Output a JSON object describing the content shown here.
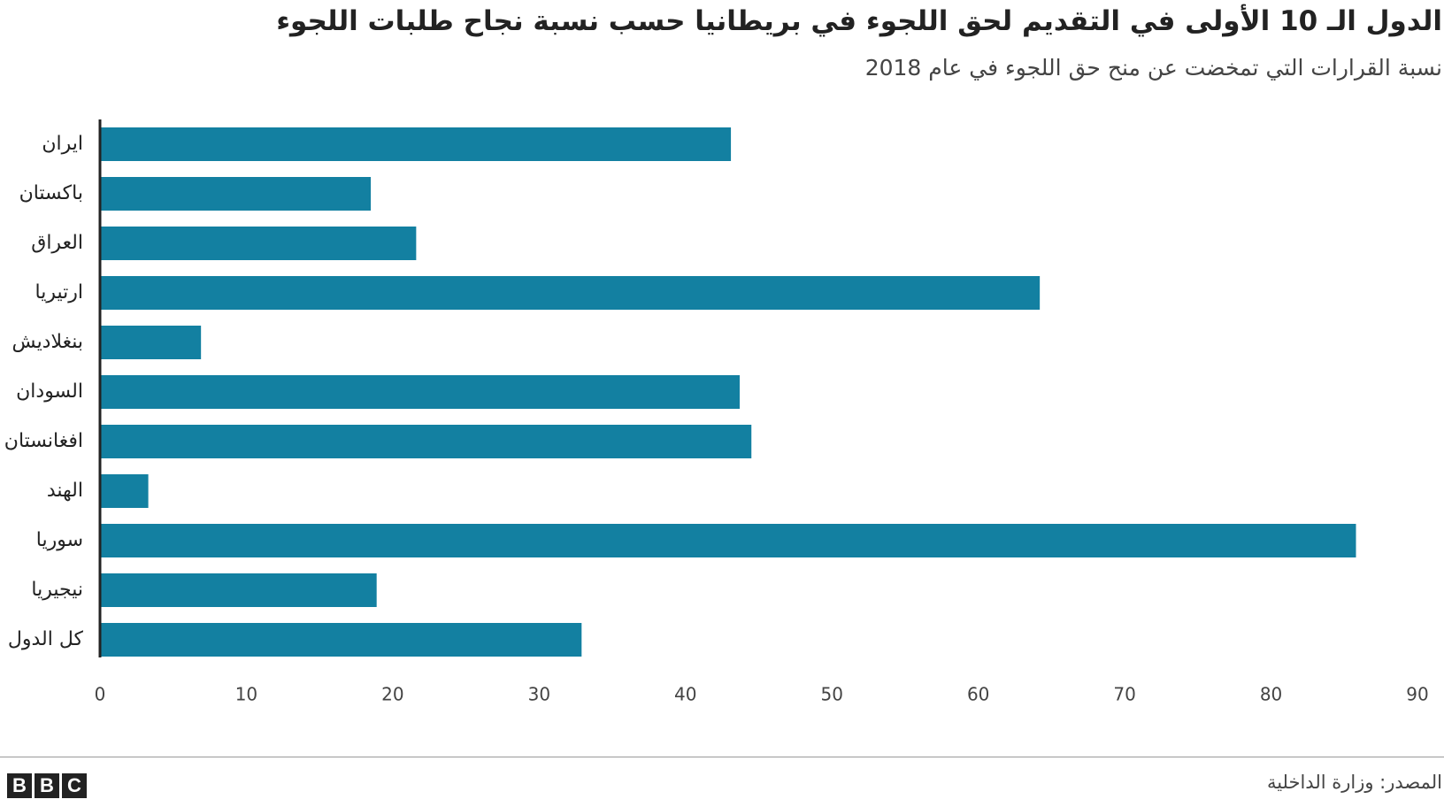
{
  "chart_data": {
    "type": "bar",
    "orientation": "horizontal",
    "title": "الدول الـ 10 الأولى في التقديم لحق اللجوء في بريطانيا حسب نسبة نجاح طلبات اللجوء",
    "subtitle": "نسبة القرارات التي تمخضت عن منح حق اللجوء في عام 2018",
    "categories": [
      "ايران",
      "باكستان",
      "العراق",
      "ارتيريا",
      "بنغلاديش",
      "السودان",
      "افغانستان",
      "الهند",
      "سوريا",
      "نيجيريا",
      "كل الدول"
    ],
    "values": [
      43.1,
      18.5,
      21.6,
      64.2,
      6.9,
      43.7,
      44.5,
      3.3,
      85.8,
      18.9,
      32.9
    ],
    "color": "#1380a1",
    "xlim": [
      0,
      90
    ],
    "xticks": [
      0,
      10,
      20,
      30,
      40,
      50,
      60,
      70,
      80,
      90
    ],
    "grid": false,
    "source": "المصدر: وزارة الداخلية",
    "logo": [
      "B",
      "B",
      "C"
    ]
  }
}
